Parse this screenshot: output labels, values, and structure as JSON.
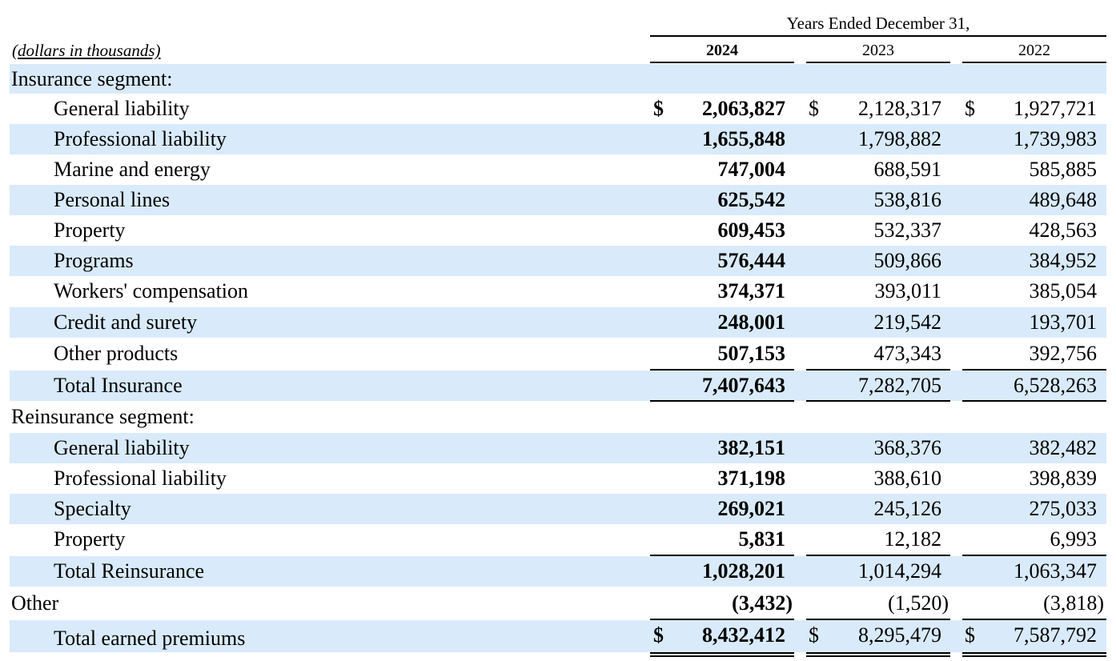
{
  "header": {
    "period_caption": "Years Ended December 31,",
    "units_note": "(dollars in thousands)",
    "years": [
      "2024",
      "2023",
      "2022"
    ]
  },
  "rows": [
    {
      "label": "Insurance segment:",
      "values": [
        "",
        "",
        ""
      ]
    },
    {
      "label": "General liability",
      "dollar": [
        "$",
        "$",
        "$"
      ],
      "values": [
        "2,063,827",
        "2,128,317",
        "1,927,721"
      ]
    },
    {
      "label": "Professional liability",
      "values": [
        "1,655,848",
        "1,798,882",
        "1,739,983"
      ]
    },
    {
      "label": "Marine and energy",
      "values": [
        "747,004",
        "688,591",
        "585,885"
      ]
    },
    {
      "label": "Personal lines",
      "values": [
        "625,542",
        "538,816",
        "489,648"
      ]
    },
    {
      "label": "Property",
      "values": [
        "609,453",
        "532,337",
        "428,563"
      ]
    },
    {
      "label": "Programs",
      "values": [
        "576,444",
        "509,866",
        "384,952"
      ]
    },
    {
      "label": "Workers' compensation",
      "values": [
        "374,371",
        "393,011",
        "385,054"
      ]
    },
    {
      "label": "Credit and surety",
      "values": [
        "248,001",
        "219,542",
        "193,701"
      ]
    },
    {
      "label": "Other products",
      "values": [
        "507,153",
        "473,343",
        "392,756"
      ]
    },
    {
      "label": "Total Insurance",
      "values": [
        "7,407,643",
        "7,282,705",
        "6,528,263"
      ]
    },
    {
      "label": "Reinsurance segment:",
      "values": [
        "",
        "",
        ""
      ]
    },
    {
      "label": "General liability",
      "values": [
        "382,151",
        "368,376",
        "382,482"
      ]
    },
    {
      "label": "Professional liability",
      "values": [
        "371,198",
        "388,610",
        "398,839"
      ]
    },
    {
      "label": "Specialty",
      "values": [
        "269,021",
        "245,126",
        "275,033"
      ]
    },
    {
      "label": "Property",
      "values": [
        "5,831",
        "12,182",
        "6,993"
      ]
    },
    {
      "label": "Total Reinsurance",
      "values": [
        "1,028,201",
        "1,014,294",
        "1,063,347"
      ]
    },
    {
      "label": "Other",
      "values": [
        "(3,432)",
        "(1,520)",
        "(3,818)"
      ]
    },
    {
      "label": "Total earned premiums",
      "dollar": [
        "$",
        "$",
        "$"
      ],
      "values": [
        "8,432,412",
        "8,295,479",
        "7,587,792"
      ]
    }
  ]
}
